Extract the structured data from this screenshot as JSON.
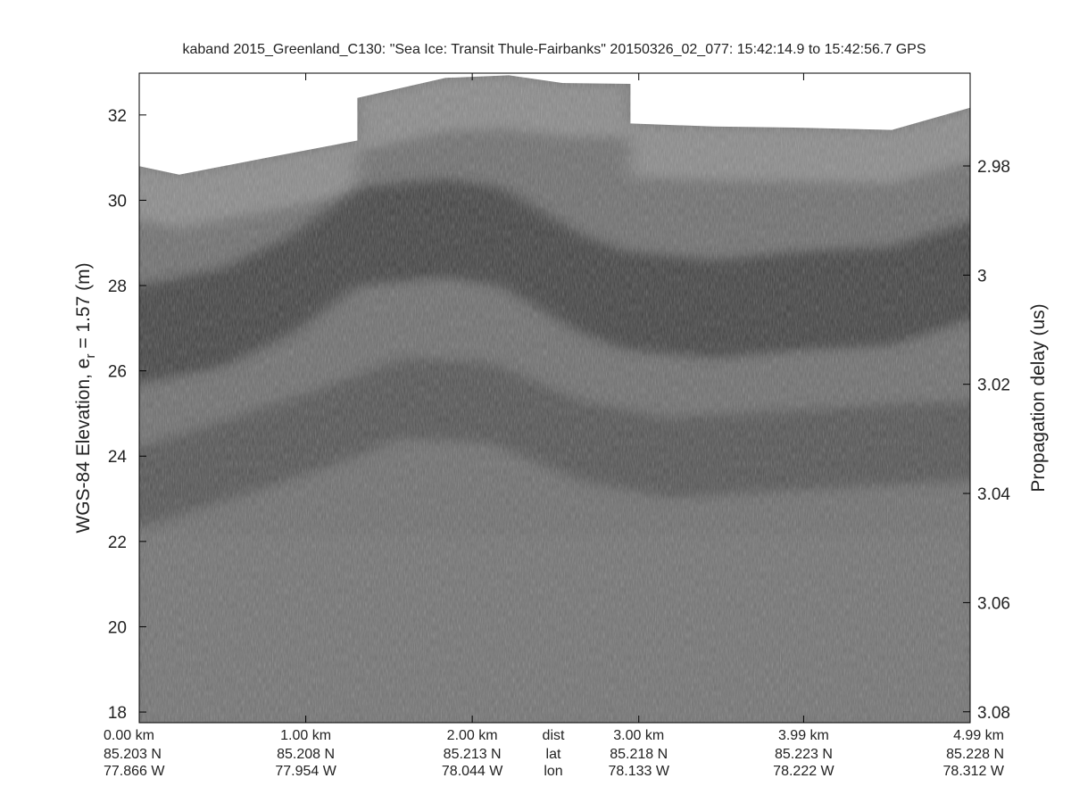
{
  "chart_data": {
    "type": "heatmap",
    "title": "kaband 2015_Greenland_C130: \"Sea Ice: Transit Thule-Fairbanks\"  20150326_02_077: 15:42:14.9 to 15:42:56.7 GPS",
    "ylabel": {
      "main": "WGS-84 Elevation, e",
      "sub": "r",
      "rest": " = 1.57 (m)"
    },
    "y2label": "Propagation delay (us)",
    "ylim": [
      17.75,
      32.98
    ],
    "y2lim": [
      2.963,
      3.082
    ],
    "xlim_km": [
      0,
      4.99
    ],
    "yticks": [
      18,
      20,
      22,
      24,
      26,
      28,
      30,
      32
    ],
    "y2ticks": [
      {
        "v": 2.98,
        "label": "2.98"
      },
      {
        "v": 3.0,
        "label": "3"
      },
      {
        "v": 3.02,
        "label": "3.02"
      },
      {
        "v": 3.04,
        "label": "3.04"
      },
      {
        "v": 3.06,
        "label": "3.06"
      },
      {
        "v": 3.08,
        "label": "3.08"
      }
    ],
    "xticks": [
      {
        "km": 0.0,
        "dist": "0.00 km",
        "lat": "85.203 N",
        "lon": "77.866 W"
      },
      {
        "km": 1.0,
        "dist": "1.00 km",
        "lat": "85.208 N",
        "lon": "77.954 W"
      },
      {
        "km": 2.0,
        "dist": "2.00 km",
        "lat": "85.213 N",
        "lon": "78.044 W"
      },
      {
        "km": 3.0,
        "dist": "3.00 km",
        "lat": "85.218 N",
        "lon": "78.133 W"
      },
      {
        "km": 3.99,
        "dist": "3.99 km",
        "lat": "85.223 N",
        "lon": "78.222 W"
      },
      {
        "km": 4.99,
        "dist": "4.99 km",
        "lat": "85.228 N",
        "lon": "78.312 W"
      }
    ],
    "row_labels": {
      "dist": "dist",
      "lat": "lat",
      "lon": "lon"
    },
    "colormap": "gray",
    "data_top_elevation": [
      [
        0,
        30.8
      ],
      [
        0.24,
        30.6
      ],
      [
        0.77,
        31.0
      ],
      [
        1.31,
        31.4
      ],
      [
        1.31,
        32.4
      ],
      [
        1.84,
        32.87
      ],
      [
        2.22,
        32.93
      ],
      [
        2.54,
        32.75
      ],
      [
        2.95,
        32.73
      ],
      [
        2.95,
        31.8
      ],
      [
        3.45,
        31.73
      ],
      [
        3.99,
        31.7
      ],
      [
        4.52,
        31.65
      ],
      [
        4.99,
        32.17
      ]
    ],
    "surface_layer": [
      [
        0,
        28.0
      ],
      [
        0.5,
        28.4
      ],
      [
        0.93,
        29.2
      ],
      [
        1.31,
        30.3
      ],
      [
        1.84,
        30.5
      ],
      [
        2.17,
        30.3
      ],
      [
        2.65,
        29.2
      ],
      [
        2.92,
        28.8
      ],
      [
        3.45,
        28.6
      ],
      [
        3.99,
        28.8
      ],
      [
        4.52,
        28.9
      ],
      [
        4.99,
        29.5
      ]
    ],
    "deep_layer": [
      [
        0,
        24.2
      ],
      [
        1.04,
        25.5
      ],
      [
        1.58,
        26.3
      ],
      [
        2.11,
        26.2
      ],
      [
        2.65,
        25.3
      ],
      [
        3.18,
        24.9
      ],
      [
        3.99,
        25.1
      ],
      [
        4.99,
        25.3
      ]
    ]
  }
}
